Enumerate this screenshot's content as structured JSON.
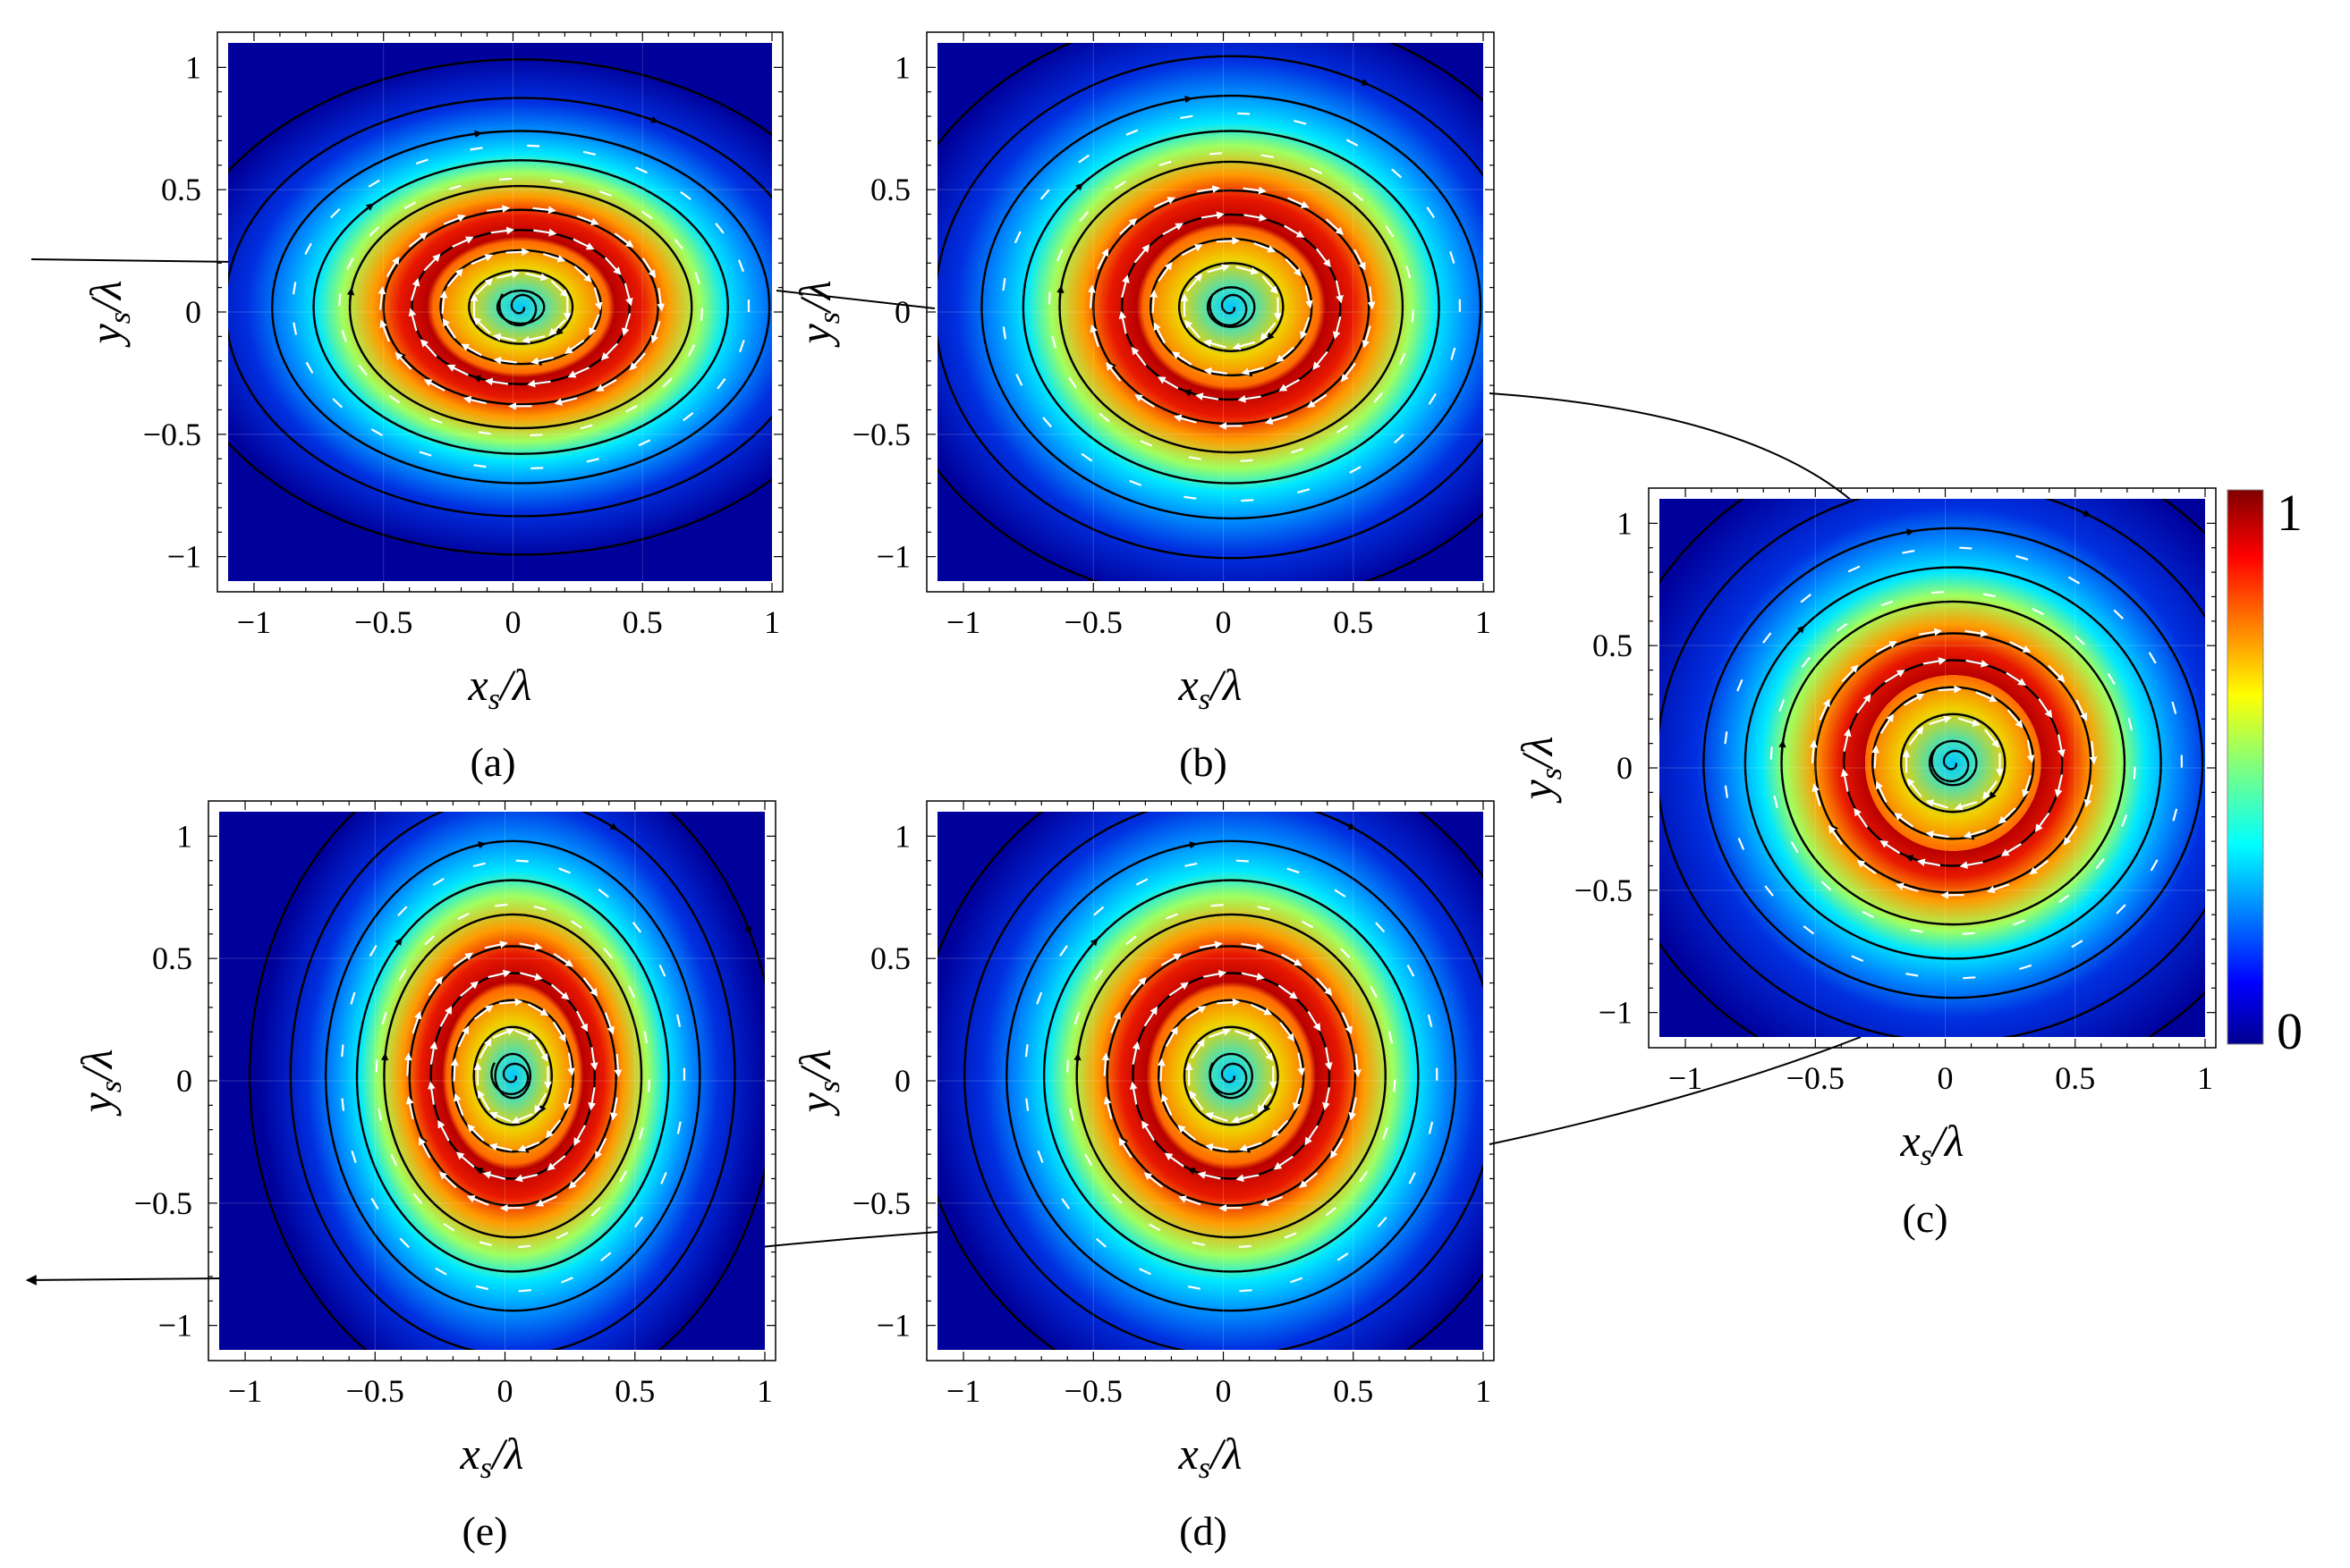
{
  "chart_data": {
    "type": "heatmap",
    "colormap": "jet",
    "colorbar": {
      "min_label": "0",
      "max_label": "1",
      "min": 0,
      "max": 1
    },
    "panel_order": [
      "a",
      "b",
      "c",
      "d",
      "e"
    ],
    "panels": [
      {
        "id": "a",
        "caption": "(a)",
        "xlabel": "x_s/λ",
        "ylabel": "y_s/λ",
        "xlim": [
          -1.1,
          1
        ],
        "ylim": [
          -1.1,
          1.1
        ],
        "xticks": [
          "-1",
          "-0.5",
          "0",
          "0.5",
          "1"
        ],
        "yticks": [
          "-1",
          "-0.5",
          "0",
          "0.5",
          "1"
        ],
        "intensity_peak_radius": 0.45,
        "x_stretch": 1.0,
        "y_stretch": 0.75
      },
      {
        "id": "b",
        "caption": "(b)",
        "xlabel": "x_s/λ",
        "ylabel": "y_s/λ",
        "xlim": [
          -1.1,
          1
        ],
        "ylim": [
          -1.1,
          1.1
        ],
        "xticks": [
          "-1",
          "-0.5",
          "0",
          "0.5",
          "1"
        ],
        "yticks": [
          "-1",
          "-0.5",
          "0",
          "0.5",
          "1"
        ],
        "intensity_peak_radius": 0.45,
        "x_stretch": 1.0,
        "y_stretch": 0.9
      },
      {
        "id": "c",
        "caption": "(c)",
        "xlabel": "x_s/λ",
        "ylabel": "y_s/λ",
        "xlim": [
          -1.1,
          1
        ],
        "ylim": [
          -1.1,
          1.1
        ],
        "xticks": [
          "-1",
          "-0.5",
          "0",
          "0.5",
          "1"
        ],
        "yticks": [
          "-1",
          "-0.5",
          "0",
          "0.5",
          "1"
        ],
        "intensity_peak_radius": 0.42,
        "x_stretch": 1.0,
        "y_stretch": 1.0
      },
      {
        "id": "d",
        "caption": "(d)",
        "xlabel": "x_s/λ",
        "ylabel": "y_s/λ",
        "xlim": [
          -1.1,
          1
        ],
        "ylim": [
          -1.1,
          1.1
        ],
        "xticks": [
          "-1",
          "-0.5",
          "0",
          "0.5",
          "1"
        ],
        "yticks": [
          "-1",
          "-0.5",
          "0",
          "0.5",
          "1"
        ],
        "intensity_peak_radius": 0.45,
        "x_stretch": 0.9,
        "y_stretch": 1.0
      },
      {
        "id": "e",
        "caption": "(e)",
        "xlabel": "x_s/λ",
        "ylabel": "y_s/λ",
        "xlim": [
          -1.1,
          1
        ],
        "ylim": [
          -1.1,
          1.1
        ],
        "xticks": [
          "-1",
          "-0.5",
          "0",
          "0.5",
          "1"
        ],
        "yticks": [
          "-1",
          "-0.5",
          "0",
          "0.5",
          "1"
        ],
        "intensity_peak_radius": 0.45,
        "x_stretch": 0.75,
        "y_stretch": 1.0
      }
    ],
    "overlays": [
      "black streamlines (counter-clockwise circulation)",
      "white field-direction arrows"
    ],
    "connectors": [
      "a-b",
      "b-c",
      "c-d",
      "d-e",
      "e-out"
    ]
  }
}
